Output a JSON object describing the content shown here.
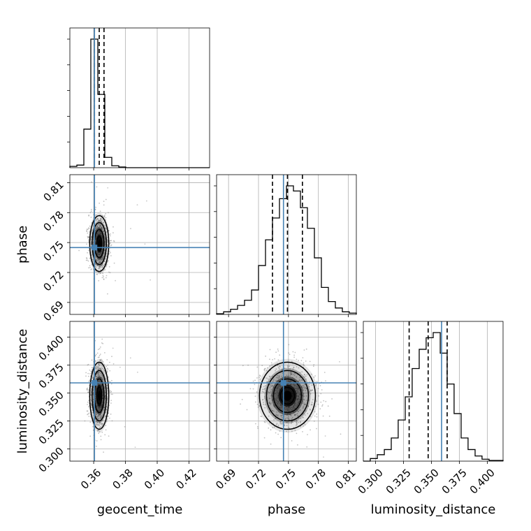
{
  "chart_data": {
    "type": "corner",
    "parameters": [
      "geocent_time",
      "phase",
      "luminosity_distance"
    ],
    "axis_labels": {
      "geocent_time": "geocent_time",
      "phase": "phase",
      "luminosity_distance": "luminosity_distance"
    },
    "ranges": {
      "geocent_time": [
        0.345,
        0.433
      ],
      "phase": [
        0.678,
        0.818
      ],
      "luminosity_distance": [
        0.289,
        0.414
      ]
    },
    "ticks": {
      "geocent_time": [
        0.36,
        0.38,
        0.4,
        0.42
      ],
      "phase": [
        0.69,
        0.72,
        0.75,
        0.78,
        0.81
      ],
      "luminosity_distance": [
        0.3,
        0.325,
        0.35,
        0.375,
        0.4
      ]
    },
    "tick_labels": {
      "geocent_time": [
        "0.36",
        "0.38",
        "0.40",
        "0.42"
      ],
      "phase": [
        "0.69",
        "0.72",
        "0.75",
        "0.78",
        "0.81"
      ],
      "luminosity_distance": [
        "0.300",
        "0.325",
        "0.350",
        "0.375",
        "0.400"
      ]
    },
    "truths": {
      "geocent_time": 0.3605,
      "phase": 0.745,
      "luminosity_distance": 0.359
    },
    "quantiles": {
      "geocent_time": [
        0.3605,
        0.3635,
        0.3665
      ],
      "phase": [
        0.734,
        0.749,
        0.764
      ],
      "luminosity_distance": [
        0.33,
        0.347,
        0.364
      ]
    },
    "histograms": {
      "geocent_time": {
        "edges": [
          0.345,
          0.3494,
          0.3538,
          0.3582,
          0.3626,
          0.367,
          0.3714,
          0.3758,
          0.3802,
          0.3846,
          0.389,
          0.433
        ],
        "counts": [
          0.01,
          0.02,
          0.3,
          1.0,
          0.57,
          0.08,
          0.015,
          0.005,
          0,
          0,
          0
        ]
      },
      "phase": {
        "edges": [
          0.678,
          0.685,
          0.692,
          0.699,
          0.706,
          0.713,
          0.72,
          0.727,
          0.734,
          0.741,
          0.748,
          0.755,
          0.762,
          0.769,
          0.776,
          0.783,
          0.79,
          0.797,
          0.804,
          0.811,
          0.818
        ],
        "counts": [
          0.005,
          0.02,
          0.04,
          0.07,
          0.11,
          0.19,
          0.38,
          0.58,
          0.75,
          0.9,
          1.0,
          0.96,
          0.83,
          0.67,
          0.44,
          0.21,
          0.1,
          0.05,
          0.02,
          0.01
        ]
      },
      "luminosity_distance": {
        "edges": [
          0.289,
          0.2952,
          0.3015,
          0.3078,
          0.314,
          0.3202,
          0.3265,
          0.3327,
          0.339,
          0.3452,
          0.3515,
          0.3578,
          0.364,
          0.3702,
          0.3765,
          0.3827,
          0.389,
          0.3952,
          0.4015,
          0.414
        ],
        "counts": [
          0.0,
          0.02,
          0.05,
          0.09,
          0.18,
          0.32,
          0.5,
          0.72,
          0.87,
          0.96,
          1.0,
          0.84,
          0.6,
          0.37,
          0.18,
          0.09,
          0.04,
          0.015,
          0.005
        ]
      }
    },
    "posterior_summary": {
      "geocent_time": {
        "mean": 0.3635,
        "sd": 0.003
      },
      "phase": {
        "mean": 0.749,
        "sd": 0.014
      },
      "luminosity_distance": {
        "mean": 0.3475,
        "sd": 0.015
      }
    },
    "colors": {
      "truth": "#4682b4",
      "hist": "#000000",
      "density": "#000000",
      "points": "#777777",
      "grid": "#b0b0b0"
    }
  }
}
